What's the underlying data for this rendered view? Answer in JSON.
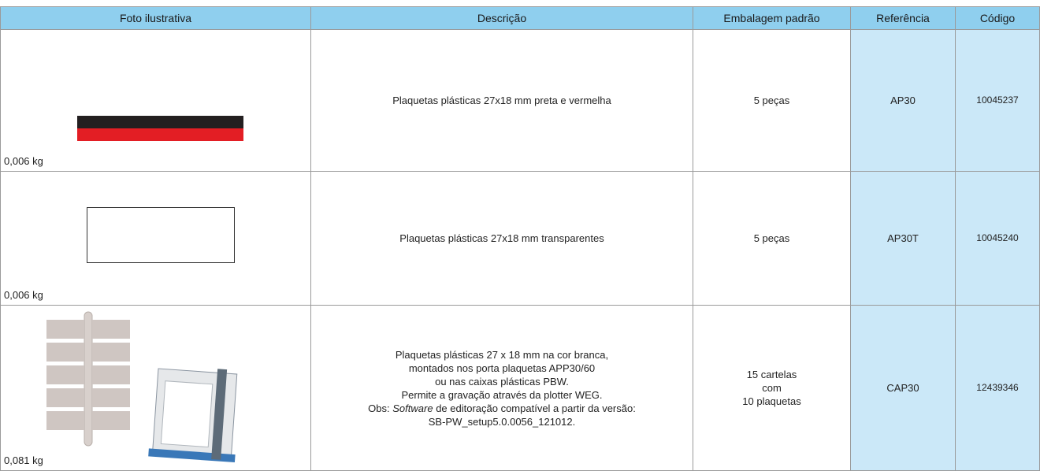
{
  "table": {
    "headers": [
      "Foto ilustrativa",
      "Descrição",
      "Embalagem padrão",
      "Referência",
      "Código"
    ],
    "rows": [
      {
        "weight": "0,006 kg",
        "description": [
          "Plaquetas plásticas 27x18 mm preta e vermelha"
        ],
        "packaging": [
          "5 peças"
        ],
        "reference": "AP30",
        "code": "10045237"
      },
      {
        "weight": "0,006 kg",
        "description": [
          "Plaquetas plásticas 27x18 mm transparentes"
        ],
        "packaging": [
          "5 peças"
        ],
        "reference": "AP30T",
        "code": "10045240"
      },
      {
        "weight": "0,081 kg",
        "description": [
          "Plaquetas plásticas 27 x 18 mm na cor branca,",
          "montados nos porta plaquetas APP30/60",
          "ou nas caixas plásticas PBW.",
          "Permite a gravação através da plotter WEG.",
          {
            "parts": [
              "Obs:",
              "Software",
              "de editoração compatível a partir da versão:"
            ]
          },
          "SB-PW_setup5.0.0056_121012."
        ],
        "packaging": [
          "15 cartelas",
          "com",
          "10 plaquetas"
        ],
        "reference": "CAP30",
        "code": "12439346"
      }
    ]
  }
}
